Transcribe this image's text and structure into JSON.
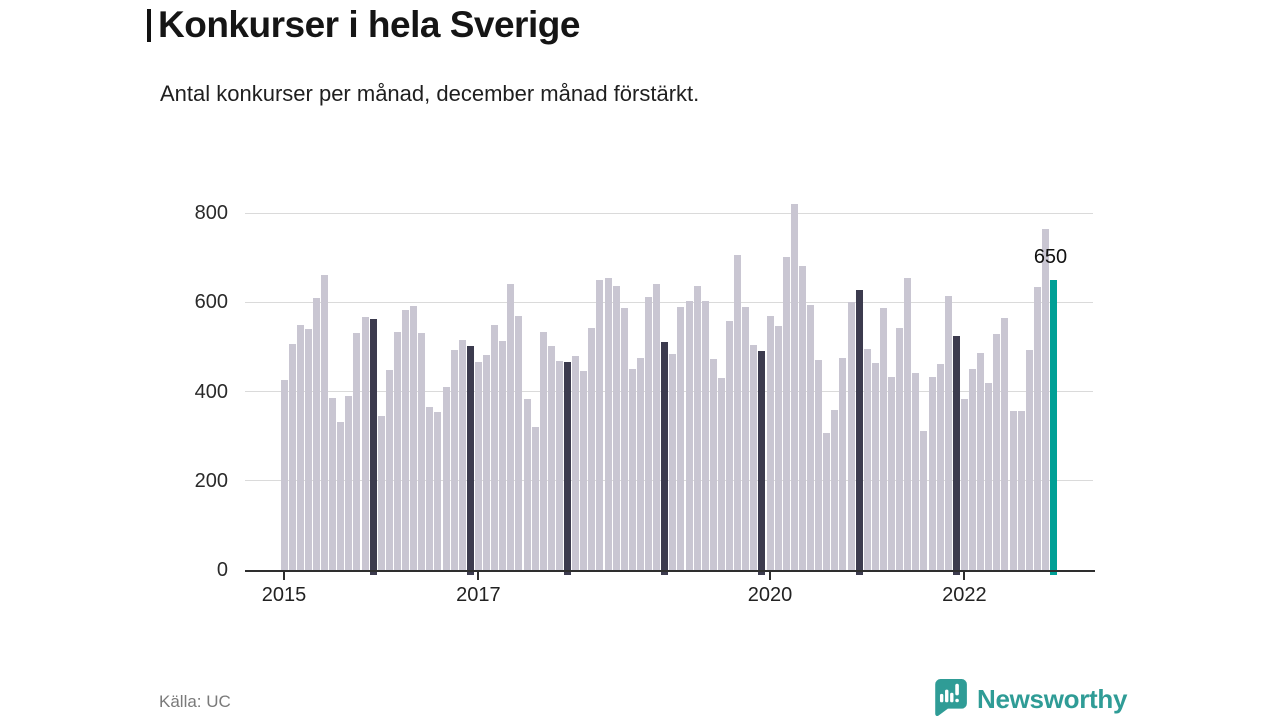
{
  "header": {
    "title": "Konkurser i hela Sverige",
    "subtitle": "Antal konkurser per månad, december månad förstärkt."
  },
  "footer": {
    "source": "Källa: UC",
    "brand_name": "Newsworthy",
    "brand_icon": "bar-chart-speech-bubble-icon"
  },
  "colors": {
    "bar": "#c9c6d2",
    "december_bar": "#3c3b4e",
    "highlight_bar": "#00a096",
    "grid": "#dadada",
    "axis": "#2e2e2e",
    "brand": "#2f9c96"
  },
  "chart_data": {
    "type": "bar",
    "title": "Konkurser i hela Sverige",
    "subtitle": "Antal konkurser per månad, december månad förstärkt.",
    "x_start": "2015-01",
    "x_frequency": "monthly",
    "values": [
      425,
      507,
      548,
      541,
      610,
      660,
      386,
      332,
      389,
      531,
      566,
      562,
      346,
      448,
      534,
      583,
      592,
      531,
      366,
      353,
      411,
      493,
      515,
      503,
      467,
      482,
      550,
      514,
      641,
      570,
      384,
      320,
      533,
      503,
      468,
      465,
      480,
      445,
      542,
      649,
      654,
      637,
      587,
      450,
      475,
      611,
      640,
      512,
      484,
      590,
      603,
      637,
      603,
      472,
      430,
      557,
      706,
      589,
      505,
      490,
      570,
      546,
      702,
      820,
      682,
      594,
      471,
      307,
      359,
      474,
      600,
      628,
      495,
      463,
      587,
      432,
      542,
      654,
      441,
      312,
      432,
      462,
      613,
      525,
      383,
      451,
      486,
      419,
      529,
      564,
      357,
      357,
      493,
      635,
      765,
      650
    ],
    "december_indices": [
      11,
      23,
      35,
      47,
      59,
      71,
      83
    ],
    "highlight": {
      "index": 95,
      "value": 650,
      "label": "650"
    },
    "yticks": [
      0,
      200,
      400,
      600,
      800
    ],
    "ylim": [
      0,
      860
    ],
    "xticks": [
      {
        "label": "2015",
        "month_index": 0
      },
      {
        "label": "2017",
        "month_index": 24
      },
      {
        "label": "2020",
        "month_index": 60
      },
      {
        "label": "2022",
        "month_index": 84
      }
    ],
    "grid": "horizontal",
    "legend": "none"
  }
}
